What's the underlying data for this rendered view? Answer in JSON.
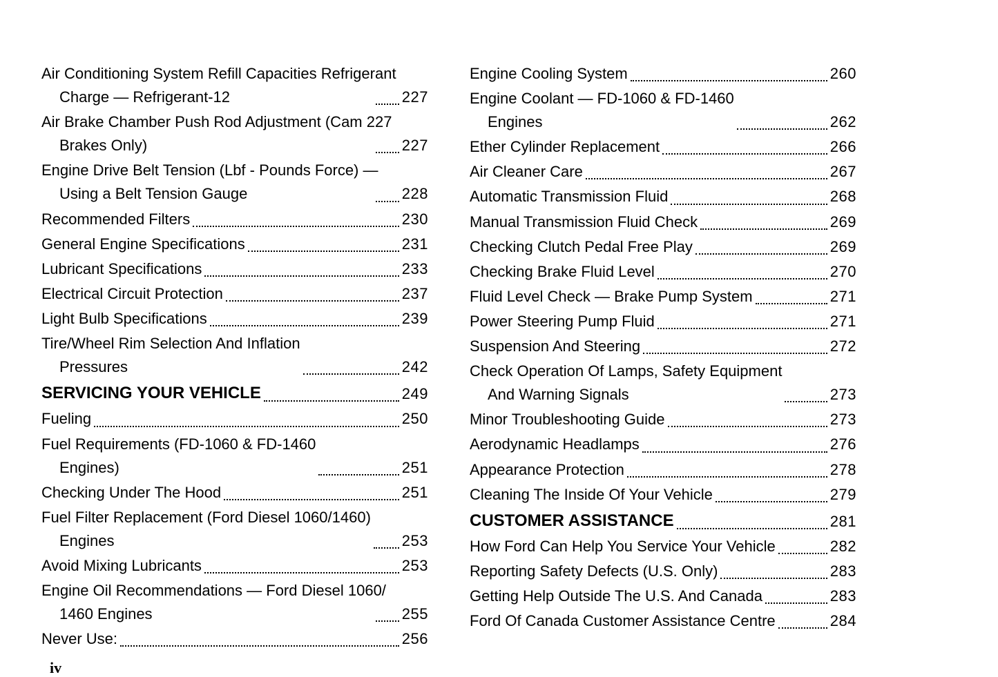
{
  "page_label": "iv",
  "columns": [
    [
      {
        "title": "Air Conditioning System Refill Capacities Refrigerant",
        "cont": "Charge — Refrigerant-12",
        "page": "227",
        "heading": false
      },
      {
        "title": "Air Brake Chamber Push Rod Adjustment (Cam 227",
        "cont": "Brakes Only)",
        "page": "227",
        "heading": false
      },
      {
        "title": "Engine Drive Belt Tension (Lbf - Pounds Force) —",
        "cont": "Using a Belt Tension Gauge",
        "page": "228",
        "heading": false
      },
      {
        "title": "Recommended Filters",
        "page": "230",
        "heading": false
      },
      {
        "title": "General Engine Specifications",
        "page": "231",
        "heading": false
      },
      {
        "title": "Lubricant Specifications",
        "page": "233",
        "heading": false
      },
      {
        "title": "Electrical Circuit Protection",
        "page": "237",
        "heading": false
      },
      {
        "title": "Light Bulb Specifications",
        "page": "239",
        "heading": false
      },
      {
        "title": "Tire/Wheel Rim Selection And Inflation",
        "cont": "Pressures",
        "page": "242",
        "heading": false
      },
      {
        "title": "SERVICING YOUR VEHICLE",
        "page": "249",
        "heading": true
      },
      {
        "title": "Fueling",
        "page": "250",
        "heading": false
      },
      {
        "title": "Fuel Requirements (FD-1060 & FD-1460",
        "cont": "Engines)",
        "page": "251",
        "heading": false
      },
      {
        "title": "Checking Under The Hood",
        "page": "251",
        "heading": false
      },
      {
        "title": "Fuel Filter Replacement (Ford Diesel 1060/1460)",
        "cont": "Engines",
        "page": "253",
        "heading": false
      },
      {
        "title": "Avoid Mixing Lubricants",
        "page": "253",
        "heading": false
      },
      {
        "title": "Engine Oil Recommendations — Ford Diesel 1060/",
        "cont": "1460 Engines",
        "page": "255",
        "heading": false
      },
      {
        "title": "Never Use:",
        "page": "256",
        "heading": false
      }
    ],
    [
      {
        "title": "Engine Cooling System",
        "page": "260",
        "heading": false
      },
      {
        "title": "Engine Coolant — FD-1060 & FD-1460",
        "cont": "Engines",
        "page": "262",
        "heading": false
      },
      {
        "title": "Ether Cylinder Replacement",
        "page": "266",
        "heading": false
      },
      {
        "title": "Air Cleaner Care",
        "page": "267",
        "heading": false
      },
      {
        "title": "Automatic Transmission Fluid",
        "page": "268",
        "heading": false
      },
      {
        "title": "Manual Transmission Fluid Check",
        "page": "269",
        "heading": false
      },
      {
        "title": "Checking Clutch Pedal Free Play",
        "page": "269",
        "heading": false
      },
      {
        "title": "Checking Brake Fluid Level",
        "page": "270",
        "heading": false
      },
      {
        "title": "Fluid Level Check — Brake Pump System",
        "page": "271",
        "heading": false
      },
      {
        "title": "Power Steering Pump Fluid",
        "page": "271",
        "heading": false
      },
      {
        "title": "Suspension And Steering",
        "page": "272",
        "heading": false
      },
      {
        "title": "Check Operation Of Lamps, Safety Equipment",
        "cont": "And Warning Signals",
        "page": "273",
        "heading": false
      },
      {
        "title": "Minor Troubleshooting Guide",
        "page": "273",
        "heading": false
      },
      {
        "title": "Aerodynamic Headlamps",
        "page": "276",
        "heading": false
      },
      {
        "title": "Appearance Protection",
        "page": "278",
        "heading": false
      },
      {
        "title": "Cleaning The Inside Of Your Vehicle",
        "page": "279",
        "heading": false
      },
      {
        "title": "CUSTOMER ASSISTANCE",
        "page": "281",
        "heading": true
      },
      {
        "title": "How Ford Can Help You Service Your Vehicle",
        "page": "282",
        "heading": false
      },
      {
        "title": "Reporting Safety Defects (U.S. Only)",
        "page": "283",
        "heading": false
      },
      {
        "title": "Getting Help Outside The U.S. And Canada",
        "page": "283",
        "heading": false
      },
      {
        "title": "Ford Of Canada Customer Assistance Centre",
        "page": "284",
        "heading": false
      }
    ]
  ]
}
